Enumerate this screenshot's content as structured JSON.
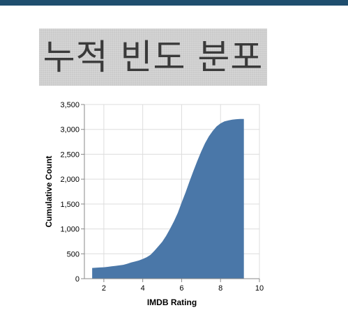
{
  "colors": {
    "top_bar": "#1f4e6e",
    "area_fill": "#4a77a8",
    "grid": "#dddddd",
    "axis": "#888888",
    "title_bg": "#cbcbcb"
  },
  "header": {
    "title": "누적 빈도 분포"
  },
  "chart_data": {
    "type": "area",
    "title": "누적 빈도 분포",
    "xlabel": "IMDB Rating",
    "ylabel": "Cumulative Count",
    "xlim": [
      1,
      10
    ],
    "ylim": [
      0,
      3500
    ],
    "xticks": [
      2,
      4,
      6,
      8,
      10
    ],
    "yticks": [
      0,
      500,
      1000,
      1500,
      2000,
      2500,
      3000,
      3500
    ],
    "ytick_labels": [
      "0",
      "500",
      "1,000",
      "1,500",
      "2,000",
      "2,500",
      "3,000",
      "3,500"
    ],
    "grid": true,
    "x": [
      1.4,
      1.6,
      1.8,
      2.0,
      2.2,
      2.4,
      2.6,
      2.8,
      3.0,
      3.2,
      3.4,
      3.6,
      3.8,
      4.0,
      4.2,
      4.4,
      4.6,
      4.8,
      5.0,
      5.2,
      5.4,
      5.6,
      5.8,
      6.0,
      6.2,
      6.4,
      6.6,
      6.8,
      7.0,
      7.2,
      7.4,
      7.6,
      7.8,
      8.0,
      8.2,
      8.4,
      8.6,
      8.8,
      9.0,
      9.2
    ],
    "values": [
      215,
      220,
      225,
      230,
      238,
      248,
      258,
      268,
      278,
      300,
      325,
      345,
      365,
      395,
      430,
      480,
      560,
      650,
      740,
      860,
      1000,
      1150,
      1320,
      1530,
      1730,
      1950,
      2160,
      2360,
      2550,
      2720,
      2860,
      2970,
      3060,
      3120,
      3160,
      3180,
      3195,
      3205,
      3210,
      3210
    ]
  }
}
